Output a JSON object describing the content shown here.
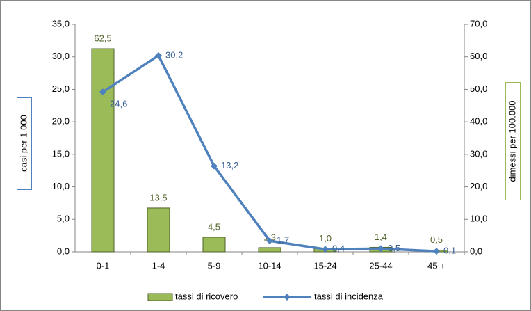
{
  "chart_data": {
    "type": "bar-line",
    "categories": [
      "0-1",
      "1-4",
      "5-9",
      "10-14",
      "15-24",
      "25-44",
      "45 +"
    ],
    "series": [
      {
        "name": "tassi di ricovero",
        "type": "bar",
        "axis": "y2",
        "color": "#9bbb59",
        "values": [
          62.5,
          13.5,
          4.5,
          1.3,
          1.0,
          1.4,
          0.5
        ],
        "value_labels": [
          "62,5",
          "13,5",
          "4,5",
          "1,3",
          "1,0",
          "1,4",
          "0,5"
        ]
      },
      {
        "name": "tassi di incidenza",
        "type": "line",
        "axis": "y",
        "color": "#4f81bd",
        "values": [
          24.6,
          30.2,
          13.2,
          1.7,
          0.4,
          0.5,
          0.1
        ],
        "value_labels": [
          "24,6",
          "30,2",
          "13,2",
          "1,7",
          "0,4",
          "0,5",
          "0,1"
        ]
      }
    ],
    "ylabel": "casi per 1.000",
    "y2label": "dimessi per 100.000",
    "ylim": [
      0,
      35
    ],
    "yticks": [
      {
        "value": 0,
        "label": "0,0"
      },
      {
        "value": 5,
        "label": "5,0"
      },
      {
        "value": 10,
        "label": "10,0"
      },
      {
        "value": 15,
        "label": "15,0"
      },
      {
        "value": 20,
        "label": "20,0"
      },
      {
        "value": 25,
        "label": "25,0"
      },
      {
        "value": 30,
        "label": "30,0"
      },
      {
        "value": 35,
        "label": "35,0"
      }
    ],
    "y2lim": [
      0,
      70
    ],
    "y2ticks": [
      {
        "value": 0,
        "label": "0,0"
      },
      {
        "value": 10,
        "label": "10,0"
      },
      {
        "value": 20,
        "label": "20,0"
      },
      {
        "value": 30,
        "label": "30,0"
      },
      {
        "value": 40,
        "label": "40,0"
      },
      {
        "value": 50,
        "label": "50,0"
      },
      {
        "value": 60,
        "label": "60,0"
      },
      {
        "value": 70,
        "label": "70,0"
      }
    ],
    "grid": false,
    "legend": "bottom"
  }
}
